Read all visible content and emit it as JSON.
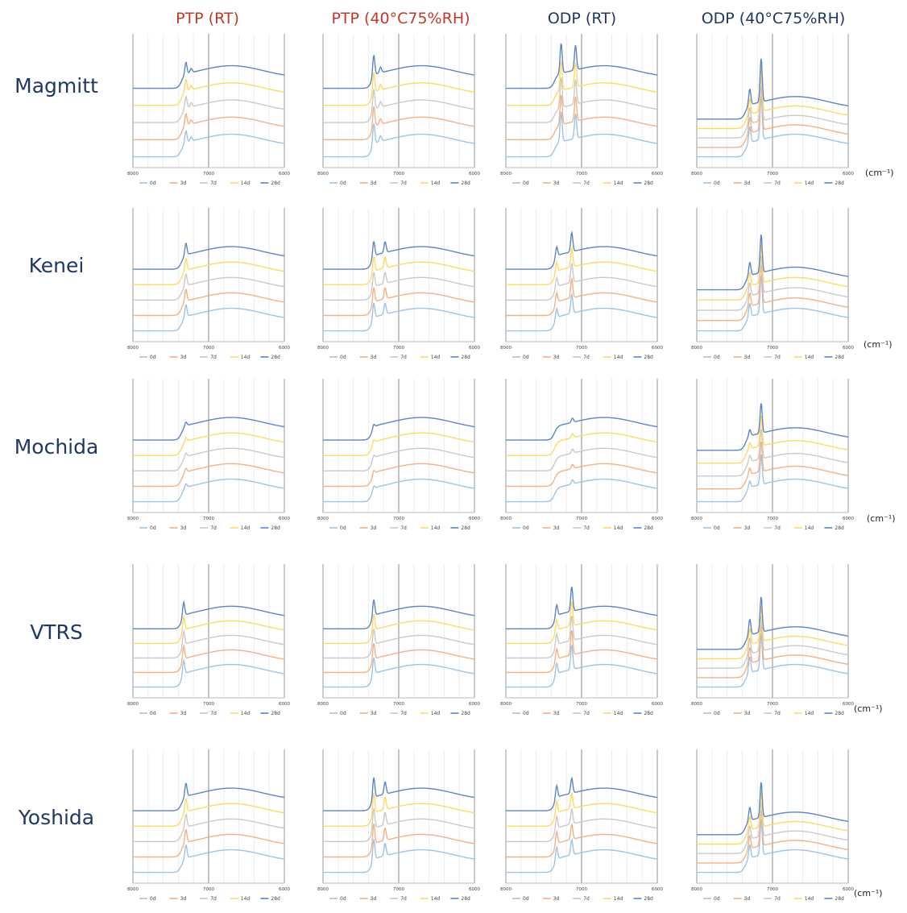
{
  "figure": {
    "column_headers": [
      {
        "label": "PTP (RT)",
        "color": "#c0392b"
      },
      {
        "label": "PTP (40°C75%RH)",
        "color": "#c0392b"
      },
      {
        "label": "ODP (RT)",
        "color": "#1f3864"
      },
      {
        "label": "ODP (40°C75%RH)",
        "color": "#1f3864"
      }
    ],
    "row_labels": [
      "Magmitt",
      "Kenei",
      "Mochida",
      "VTRS",
      "Yoshida"
    ],
    "unit_label": "(cm⁻¹)"
  },
  "chart_data": {
    "type": "line",
    "panel_grid": {
      "rows": 5,
      "cols": 4
    },
    "x_axis": {
      "range": [
        8000,
        6000
      ],
      "reversed": true,
      "ticks": [
        8000,
        7000,
        6000
      ],
      "tick_labels": [
        "8000",
        "7000",
        "6000"
      ],
      "unit": "cm⁻¹"
    },
    "y_axis": {
      "visible": false
    },
    "grid": {
      "vertical": true,
      "horizontal": false
    },
    "legend": {
      "position": "bottom",
      "entries": [
        "0d",
        "3d",
        "7d",
        "14d",
        "28d"
      ]
    },
    "series_styles": [
      {
        "name": "0d",
        "color": "#9dc3e6"
      },
      {
        "name": "3d",
        "color": "#f4b183"
      },
      {
        "name": "7d",
        "color": "#c9c9c9"
      },
      {
        "name": "14d",
        "color": "#ffd966"
      },
      {
        "name": "28d",
        "color": "#5b86c6"
      }
    ],
    "rows": [
      {
        "label": "Magmitt",
        "panels": [
          {
            "column": "PTP (RT)",
            "peak_height": 0.9,
            "peak2_height": 0.3,
            "peak_position_cm": 7300,
            "peak2_position_cm": 7230,
            "stack_spacing": 1.0
          },
          {
            "column": "PTP (40°C75%RH)",
            "peak_height": 1.6,
            "peak2_height": 0.4,
            "peak_position_cm": 7330,
            "peak2_position_cm": 7240,
            "stack_spacing": 1.0
          },
          {
            "column": "ODP (RT)",
            "peak_height": 2.2,
            "peak2_height": 1.8,
            "peak_position_cm": 7270,
            "peak2_position_cm": 7080,
            "stack_spacing": 1.0
          },
          {
            "column": "ODP (40°C75%RH)",
            "peak_height": 3.2,
            "peak2_height": 1.2,
            "peak_position_cm": 7150,
            "peak2_position_cm": 7300,
            "stack_spacing": 0.55
          }
        ]
      },
      {
        "label": "Kenei",
        "panels": [
          {
            "column": "PTP (RT)",
            "peak_height": 0.9,
            "peak2_height": 0.0,
            "peak_position_cm": 7300,
            "peak2_position_cm": 7230,
            "stack_spacing": 0.9
          },
          {
            "column": "PTP (40°C75%RH)",
            "peak_height": 1.2,
            "peak2_height": 0.8,
            "peak_position_cm": 7330,
            "peak2_position_cm": 7180,
            "stack_spacing": 0.9
          },
          {
            "column": "ODP (RT)",
            "peak_height": 0.8,
            "peak2_height": 1.4,
            "peak_position_cm": 7330,
            "peak2_position_cm": 7130,
            "stack_spacing": 0.9
          },
          {
            "column": "ODP (40°C75%RH)",
            "peak_height": 2.8,
            "peak2_height": 1.0,
            "peak_position_cm": 7150,
            "peak2_position_cm": 7300,
            "stack_spacing": 0.6
          }
        ]
      },
      {
        "label": "Mochida",
        "panels": [
          {
            "column": "PTP (RT)",
            "peak_height": 0.3,
            "peak2_height": 0.0,
            "peak_position_cm": 7300,
            "peak2_position_cm": 7230,
            "stack_spacing": 0.9
          },
          {
            "column": "PTP (40°C75%RH)",
            "peak_height": 0.3,
            "peak2_height": 0.0,
            "peak_position_cm": 7330,
            "peak2_position_cm": 7230,
            "stack_spacing": 0.9
          },
          {
            "column": "ODP (RT)",
            "peak_height": 0.0,
            "peak2_height": 0.3,
            "peak_position_cm": 7330,
            "peak2_position_cm": 7120,
            "stack_spacing": 0.9
          },
          {
            "column": "ODP (40°C75%RH)",
            "peak_height": 2.2,
            "peak2_height": 0.5,
            "peak_position_cm": 7150,
            "peak2_position_cm": 7300,
            "stack_spacing": 0.75
          }
        ]
      },
      {
        "label": "VTRS",
        "panels": [
          {
            "column": "PTP (RT)",
            "peak_height": 1.1,
            "peak2_height": 0.0,
            "peak_position_cm": 7330,
            "peak2_position_cm": 7230,
            "stack_spacing": 0.85
          },
          {
            "column": "PTP (40°C75%RH)",
            "peak_height": 1.3,
            "peak2_height": 0.0,
            "peak_position_cm": 7330,
            "peak2_position_cm": 7230,
            "stack_spacing": 0.85
          },
          {
            "column": "ODP (RT)",
            "peak_height": 0.9,
            "peak2_height": 1.8,
            "peak_position_cm": 7330,
            "peak2_position_cm": 7130,
            "stack_spacing": 0.85
          },
          {
            "column": "ODP (40°C75%RH)",
            "peak_height": 2.6,
            "peak2_height": 1.2,
            "peak_position_cm": 7150,
            "peak2_position_cm": 7300,
            "stack_spacing": 0.55
          }
        ]
      },
      {
        "label": "Yoshida",
        "panels": [
          {
            "column": "PTP (RT)",
            "peak_height": 1.0,
            "peak2_height": 0.0,
            "peak_position_cm": 7300,
            "peak2_position_cm": 7230,
            "stack_spacing": 0.9
          },
          {
            "column": "PTP (40°C75%RH)",
            "peak_height": 1.6,
            "peak2_height": 0.9,
            "peak_position_cm": 7330,
            "peak2_position_cm": 7180,
            "stack_spacing": 0.9
          },
          {
            "column": "ODP (RT)",
            "peak_height": 1.0,
            "peak2_height": 1.1,
            "peak_position_cm": 7330,
            "peak2_position_cm": 7130,
            "stack_spacing": 0.9
          },
          {
            "column": "ODP (40°C75%RH)",
            "peak_height": 2.6,
            "peak2_height": 1.0,
            "peak_position_cm": 7150,
            "peak2_position_cm": 7300,
            "stack_spacing": 0.55
          }
        ]
      }
    ]
  }
}
